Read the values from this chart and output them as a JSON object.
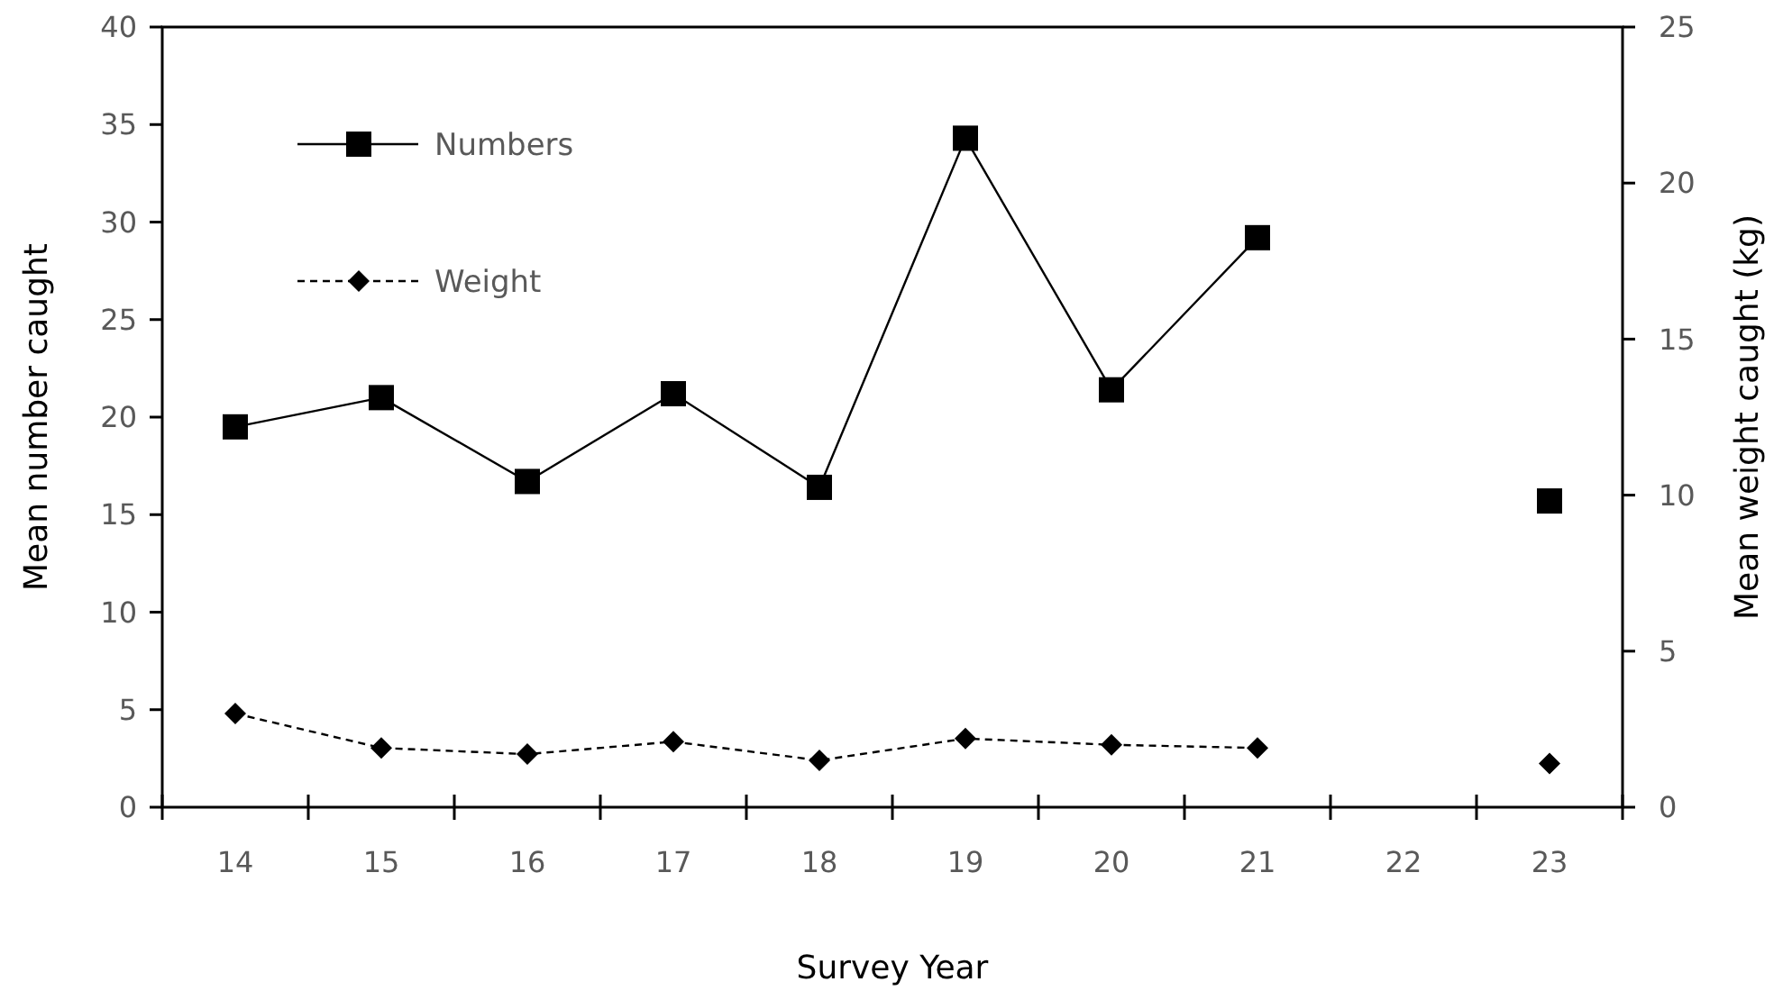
{
  "chart_data": {
    "type": "line",
    "xlabel": "Survey Year",
    "ylabel": "Mean number caught",
    "y2label": "Mean weight caught (kg)",
    "categories": [
      "14",
      "15",
      "16",
      "17",
      "18",
      "19",
      "20",
      "21",
      "22",
      "23"
    ],
    "series": [
      {
        "name": "Numbers",
        "color": "#000000",
        "marker": "square",
        "line_style": "solid",
        "values": [
          19.5,
          21.0,
          16.7,
          21.2,
          16.4,
          34.3,
          21.4,
          29.2,
          null,
          15.7
        ]
      },
      {
        "name": "Weight",
        "color": "#000000",
        "marker": "diamond",
        "line_style": "dashed",
        "axis": "y2",
        "values": [
          3.0,
          1.9,
          1.7,
          2.1,
          1.5,
          2.2,
          2.0,
          1.9,
          null,
          1.4
        ]
      }
    ],
    "ylim": [
      0,
      40
    ],
    "yticks": [
      0,
      5,
      10,
      15,
      20,
      25,
      30,
      35,
      40
    ],
    "y2lim": [
      0,
      25
    ],
    "y2ticks": [
      0,
      5,
      10,
      15,
      20,
      25
    ],
    "grid": false,
    "legend": "top left"
  }
}
